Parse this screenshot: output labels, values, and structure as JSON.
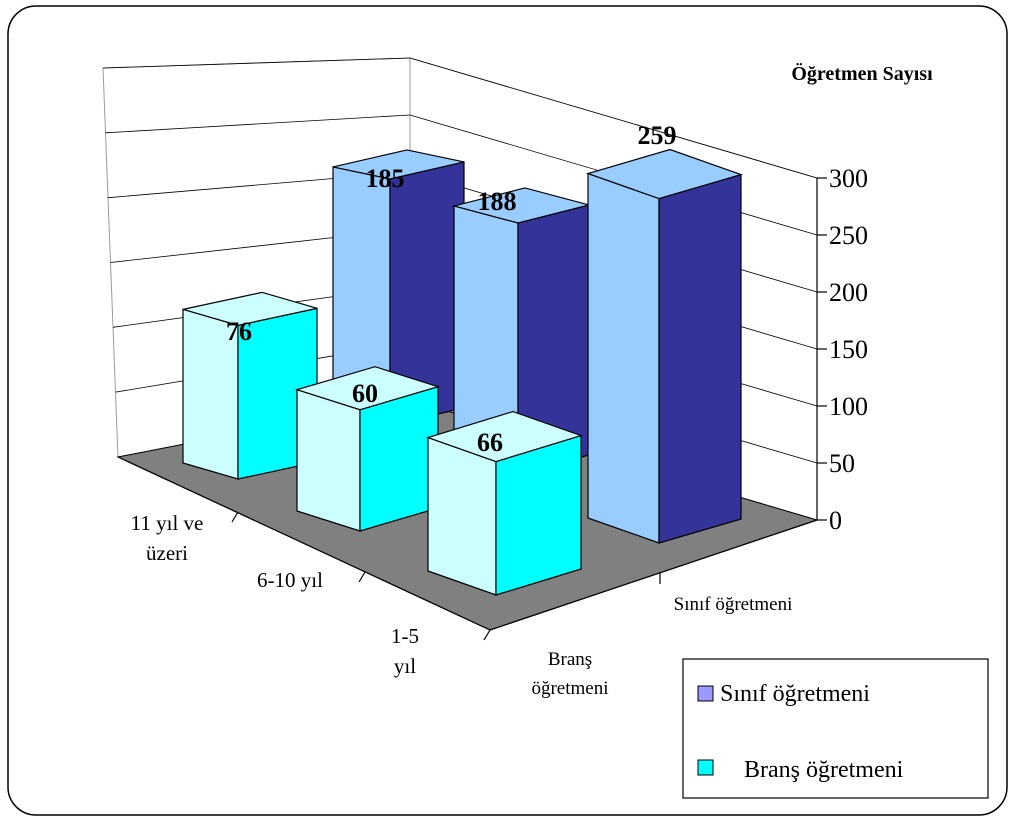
{
  "chart_data": {
    "type": "bar",
    "style": "3d-column",
    "ylabel": "Öğretmen Sayısı",
    "ylim": [
      0,
      300
    ],
    "yticks": [
      "0",
      "50",
      "100",
      "150",
      "200",
      "250",
      "300"
    ],
    "grid": true,
    "legend_position": "bottom-right",
    "categories": [
      {
        "lines": [
          "11 yıl ve",
          "üzeri"
        ]
      },
      {
        "lines": [
          "6-10 yıl"
        ]
      },
      {
        "lines": [
          "1-5",
          "yıl"
        ]
      }
    ],
    "depth_labels": [
      {
        "lines": [
          "Sınıf öğretmeni"
        ]
      },
      {
        "lines": [
          "Branş",
          "öğretmeni"
        ]
      }
    ],
    "series": [
      {
        "name": "Sınıf öğretmeni",
        "values": [
          185,
          188,
          259
        ],
        "labels": [
          "185",
          "188",
          "259"
        ],
        "colors": {
          "front": "#99ccff",
          "side": "#333399",
          "top": "#99ccff"
        }
      },
      {
        "name": "Branş öğretmeni",
        "values": [
          76,
          60,
          66
        ],
        "labels": [
          "76",
          "60",
          "66"
        ],
        "colors": {
          "front": "#ccffff",
          "side": "#00ffff",
          "top": "#ccffff"
        }
      }
    ],
    "floor_color": "#808080"
  }
}
